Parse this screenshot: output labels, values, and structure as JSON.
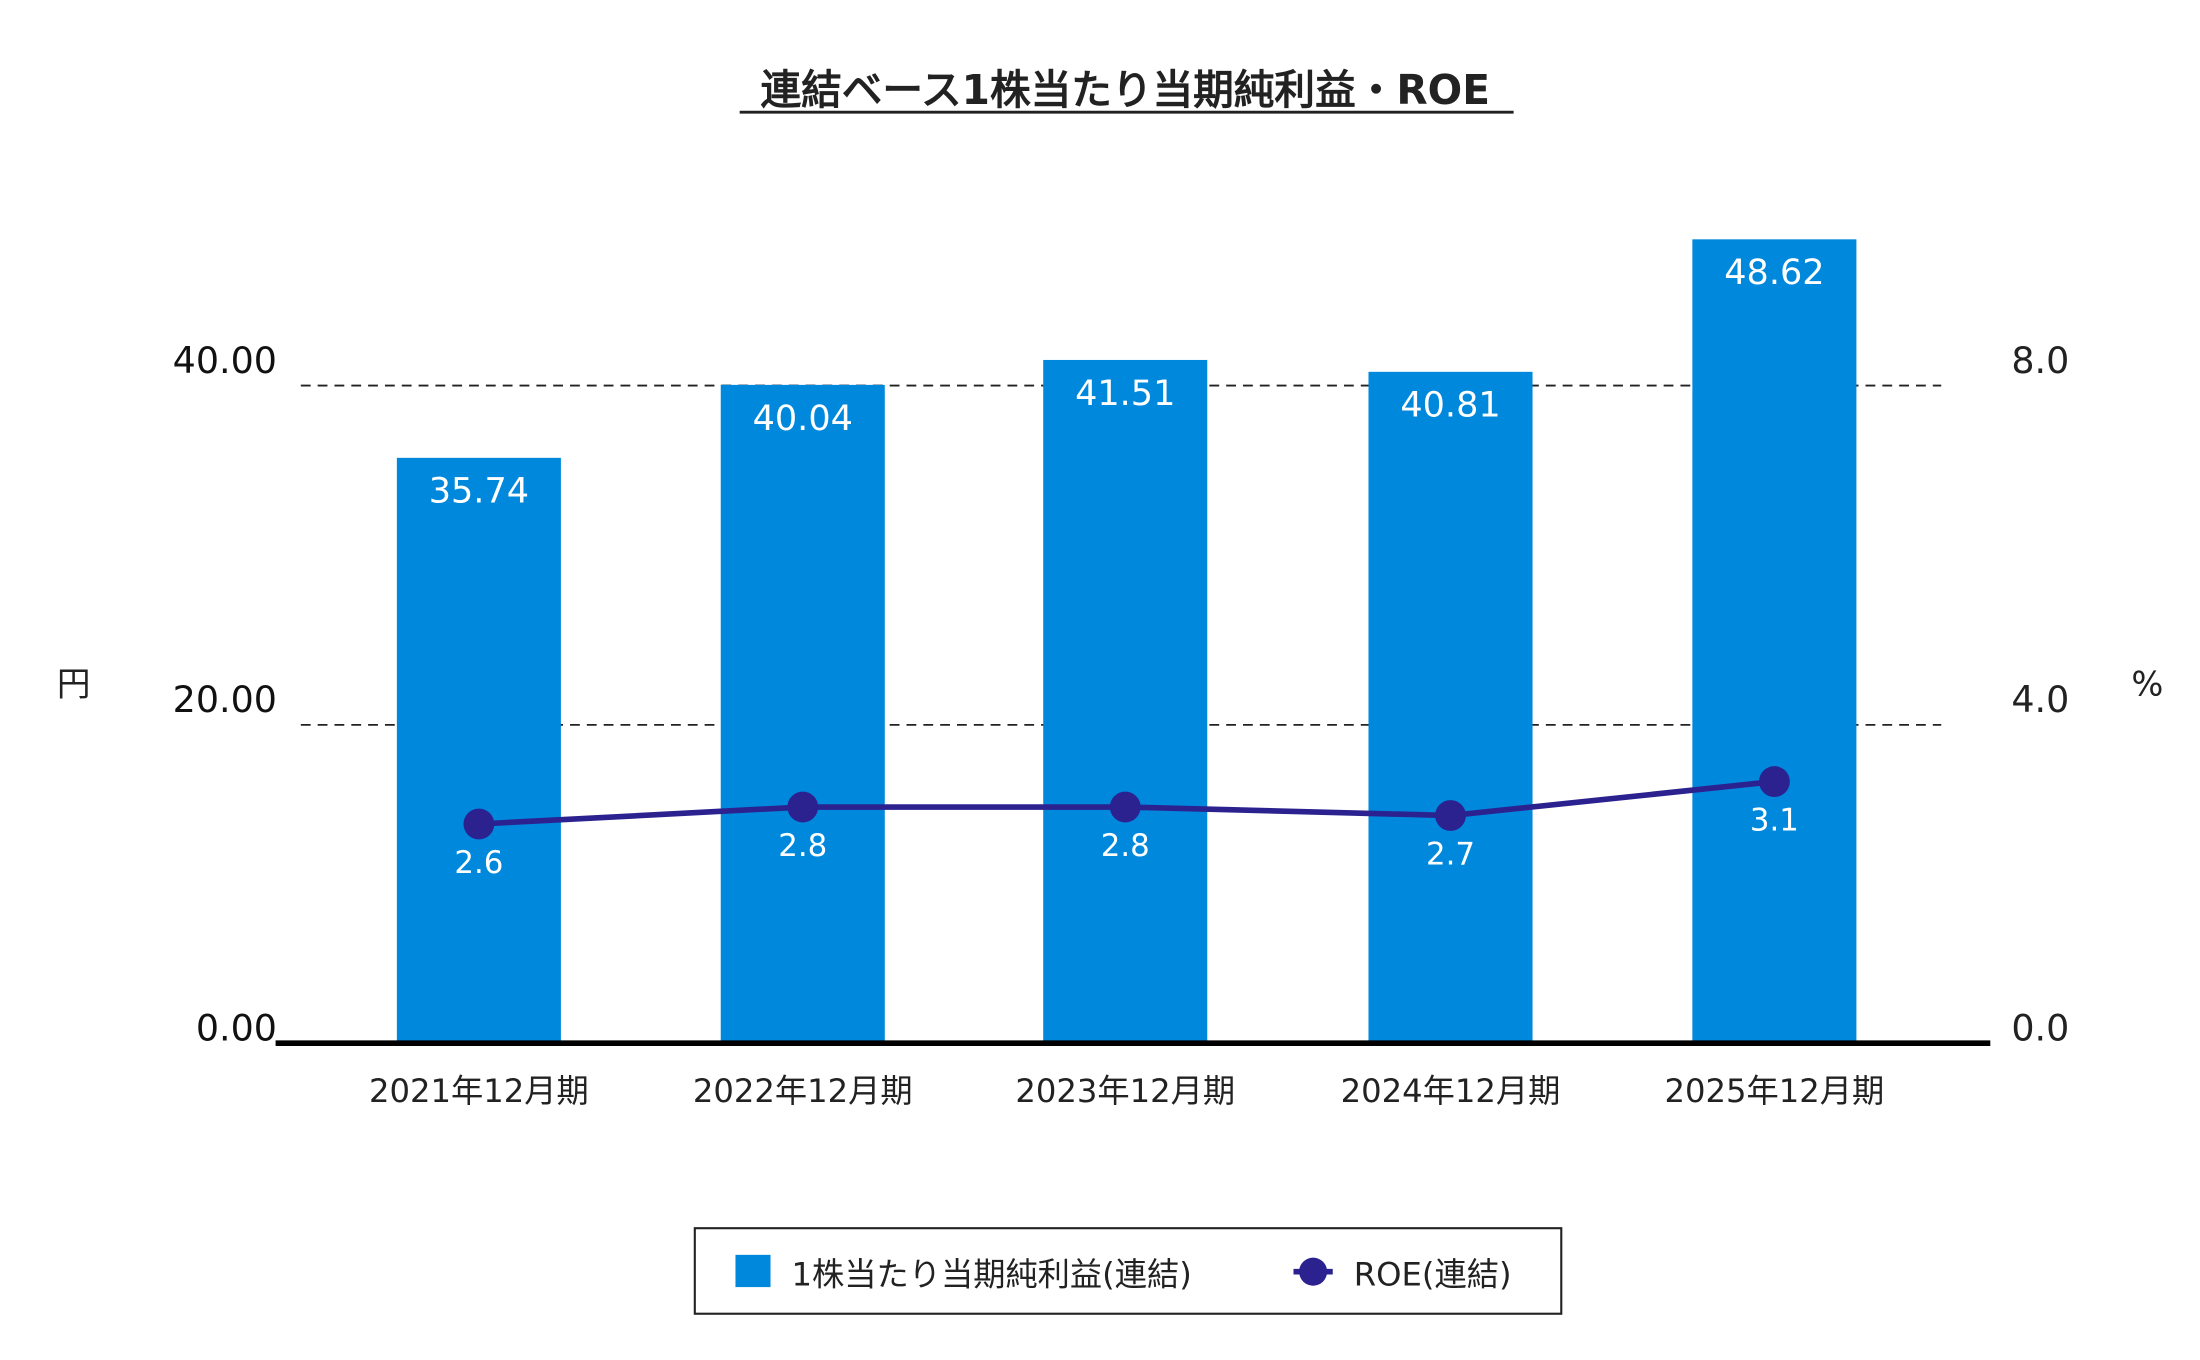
{
  "chart_data": {
    "type": "bar",
    "title": "連結ベース1株当たり当期純利益・ROE",
    "categories": [
      "2021年12月期",
      "2022年12月期",
      "2023年12月期",
      "2024年12月期",
      "2025年12月期"
    ],
    "series": [
      {
        "name": "1株当たり当期純利益(連結)",
        "type": "bar",
        "axis": "left",
        "color": "#0088DD",
        "values": [
          35.74,
          40.04,
          41.51,
          40.81,
          48.62
        ],
        "labels": [
          "35.74",
          "40.04",
          "41.51",
          "40.81",
          "48.62"
        ]
      },
      {
        "name": "ROE(連結)",
        "type": "line",
        "axis": "right",
        "color": "#2B2290",
        "values": [
          2.6,
          2.8,
          2.8,
          2.7,
          3.1
        ],
        "labels": [
          "2.6",
          "2.8",
          "2.8",
          "2.7",
          "3.1"
        ]
      }
    ],
    "y_left": {
      "label": "円",
      "ylim": [
        0,
        40
      ],
      "ticks": [
        "0.00",
        "20.00",
        "40.00"
      ]
    },
    "y_right": {
      "label": "%",
      "ylim": [
        0,
        8
      ],
      "ticks": [
        "0.0",
        "4.0",
        "8.0"
      ]
    },
    "grid": "dashed horizontal",
    "legend": "bottom-center"
  }
}
